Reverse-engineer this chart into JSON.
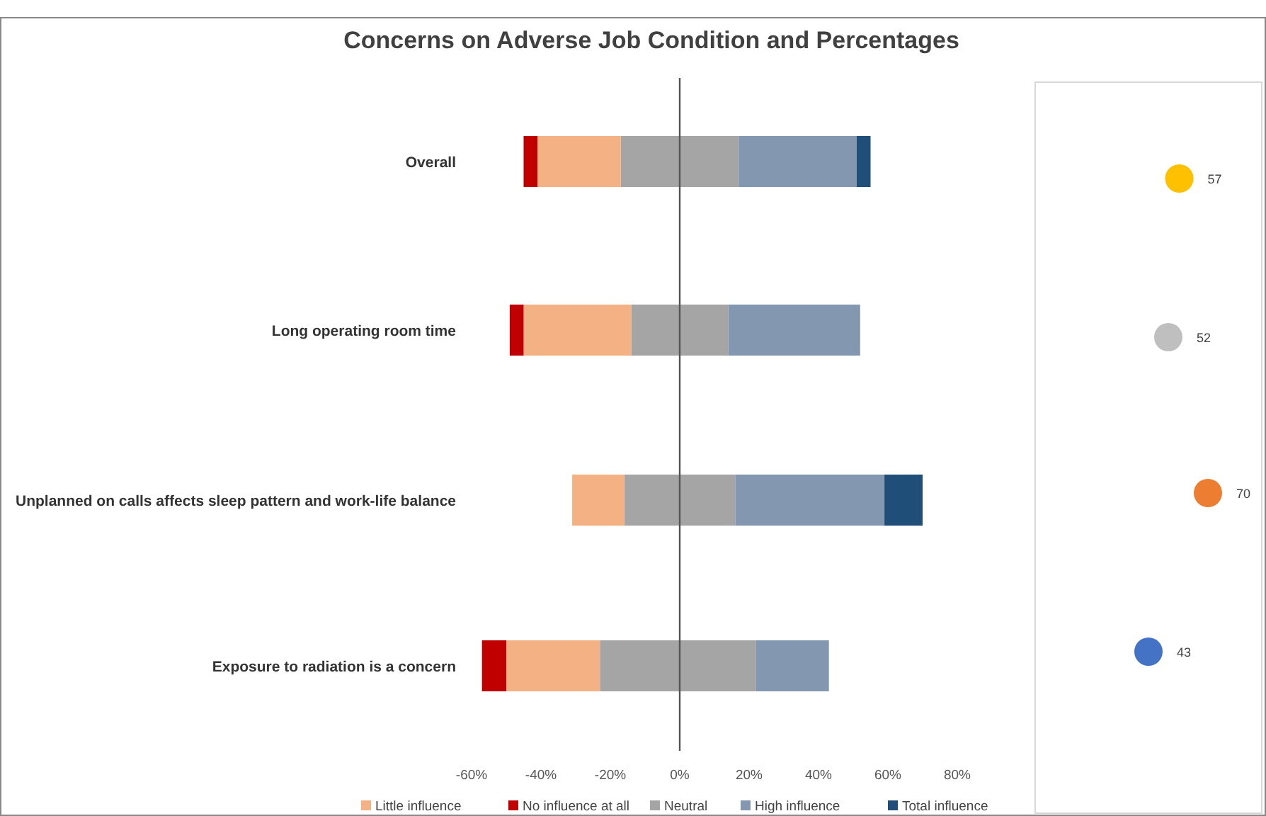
{
  "chart_data": [
    {
      "type": "bar",
      "title": "Concerns on Adverse Job Condition and Percentages",
      "orientation": "horizontal",
      "stacked": true,
      "categories": [
        "Overall",
        "Long operating room time",
        "Unplanned on calls affects sleep pattern and work-life balance",
        "Exposure to radiation is a concern"
      ],
      "series": [
        {
          "color": "#a5a5a5",
          "values": [
            -17,
            -14,
            -16,
            -23
          ]
        },
        {
          "name": "Neutral",
          "color": "#a5a5a5",
          "values": [
            17,
            14,
            16,
            22
          ]
        },
        {
          "name": "Little influence",
          "color": "#f4b183",
          "values": [
            -24,
            -31,
            -15,
            -27
          ]
        },
        {
          "name": "No influence at all",
          "color": "#c00000",
          "values": [
            -4,
            -4,
            0,
            -7
          ]
        },
        {
          "name": "High influence",
          "color": "#8497b0",
          "values": [
            34,
            38,
            43,
            21
          ]
        },
        {
          "name": "Total influence",
          "color": "#1f4e79",
          "values": [
            4,
            0,
            11,
            0
          ]
        }
      ],
      "xlim": [
        -60,
        80
      ],
      "xticks": [
        {
          "value": -60,
          "label": "-60%"
        },
        {
          "value": -40,
          "label": "-40%"
        },
        {
          "value": -20,
          "label": "-20%"
        },
        {
          "value": 0,
          "label": "0%"
        },
        {
          "value": 20,
          "label": "20%"
        },
        {
          "value": 40,
          "label": "40%"
        },
        {
          "value": 60,
          "label": "60%"
        },
        {
          "value": 80,
          "label": "80%"
        }
      ],
      "legend": "bottom"
    },
    {
      "type": "scatter",
      "orientation": "horizontal",
      "categories": [
        null,
        null,
        null,
        null
      ],
      "values": [
        57,
        52,
        70,
        43
      ],
      "colors": [
        "#ffc000",
        "#bfbfbf",
        "#ed7d31",
        "#4472c4"
      ],
      "data_labels": true
    }
  ]
}
